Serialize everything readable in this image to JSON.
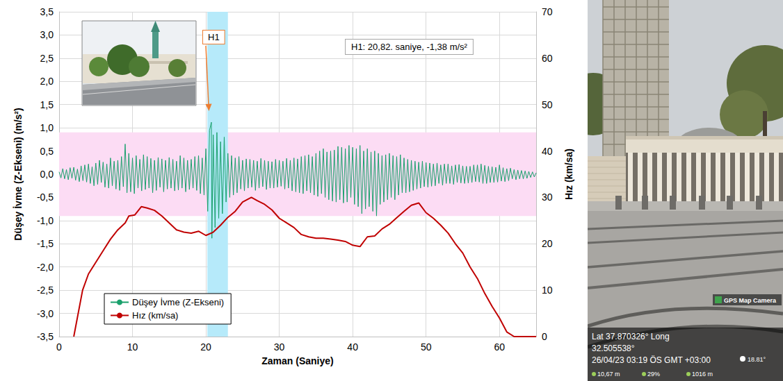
{
  "chart_data": {
    "type": "line",
    "x_label": "Zaman (Saniye)",
    "y_label": "Düşey İvme (Z-Ekseni) (m/s²)",
    "y2_label": "Hız (km/sa)",
    "xlim": [
      0,
      65
    ],
    "xticks": [
      0,
      10,
      20,
      30,
      40,
      50,
      60
    ],
    "ylim": [
      -3.5,
      3.5
    ],
    "yticks": [
      {
        "value": -3.5,
        "label": "-3,5"
      },
      {
        "value": -3,
        "label": "-3,0"
      },
      {
        "value": -2.5,
        "label": "-2,5"
      },
      {
        "value": -2,
        "label": "-2,0"
      },
      {
        "value": -1.5,
        "label": "-1,5"
      },
      {
        "value": -1,
        "label": "-1,0"
      },
      {
        "value": -0.5,
        "label": "-0,5"
      },
      {
        "value": 0,
        "label": "0,0"
      },
      {
        "value": 0.5,
        "label": "0,5"
      },
      {
        "value": 1,
        "label": "1,0"
      },
      {
        "value": 1.5,
        "label": "1,5"
      },
      {
        "value": 2,
        "label": "2,0"
      },
      {
        "value": 2.5,
        "label": "2,5"
      },
      {
        "value": 3,
        "label": "3,0"
      },
      {
        "value": 3.5,
        "label": "3,5"
      }
    ],
    "y2lim": [
      0,
      70
    ],
    "y2ticks": [
      0,
      10,
      20,
      30,
      40,
      50,
      60,
      70
    ],
    "grid": true,
    "legend": "lower left",
    "y_band": [
      -0.9,
      0.9
    ],
    "x_band": [
      20.2,
      23
    ],
    "annotations": [
      "H1",
      "H1: 20,82. saniye, -1,38 m/s²"
    ],
    "series": [
      {
        "name": "Düşey İvme (Z-Ekseni)",
        "color": "#1aa06c",
        "x": [
          0,
          0.25,
          0.5,
          0.75,
          1,
          1.25,
          1.5,
          1.75,
          2,
          2.25,
          2.5,
          2.75,
          3,
          3.25,
          3.5,
          3.75,
          4,
          4.25,
          4.5,
          4.75,
          5,
          5.25,
          5.5,
          5.75,
          6,
          6.25,
          6.5,
          6.75,
          7,
          7.25,
          7.5,
          7.75,
          8,
          8.25,
          8.5,
          8.75,
          9,
          9.25,
          9.5,
          9.75,
          10,
          10.25,
          10.5,
          10.75,
          11,
          11.25,
          11.5,
          11.75,
          12,
          12.25,
          12.5,
          12.75,
          13,
          13.25,
          13.5,
          13.75,
          14,
          14.25,
          14.5,
          14.75,
          15,
          15.25,
          15.5,
          15.75,
          16,
          16.25,
          16.5,
          16.75,
          17,
          17.25,
          17.5,
          17.75,
          18,
          18.25,
          18.5,
          18.75,
          19,
          19.25,
          19.5,
          19.75,
          20,
          20.25,
          20.5,
          20.75,
          20.82,
          21,
          21.25,
          21.5,
          21.75,
          22,
          22.25,
          22.5,
          22.75,
          23,
          23.25,
          23.5,
          23.75,
          24,
          24.25,
          24.5,
          24.75,
          25,
          25.25,
          25.5,
          25.75,
          26,
          26.25,
          26.5,
          26.75,
          27,
          27.25,
          27.5,
          27.75,
          28,
          28.25,
          28.5,
          28.75,
          29,
          29.25,
          29.5,
          29.75,
          30,
          30.25,
          30.5,
          30.75,
          31,
          31.25,
          31.5,
          31.75,
          32,
          32.25,
          32.5,
          32.75,
          33,
          33.25,
          33.5,
          33.75,
          34,
          34.25,
          34.5,
          34.75,
          35,
          35.25,
          35.5,
          35.75,
          36,
          36.25,
          36.5,
          36.75,
          37,
          37.25,
          37.5,
          37.75,
          38,
          38.25,
          38.5,
          38.75,
          39,
          39.25,
          39.5,
          39.75,
          40,
          40.25,
          40.5,
          40.75,
          41,
          41.25,
          41.5,
          41.75,
          42,
          42.25,
          42.5,
          42.75,
          43,
          43.25,
          43.5,
          43.75,
          44,
          44.25,
          44.5,
          44.75,
          45,
          45.25,
          45.5,
          45.75,
          46,
          46.25,
          46.5,
          46.75,
          47,
          47.25,
          47.5,
          47.75,
          48,
          48.25,
          48.5,
          48.75,
          49,
          49.25,
          49.5,
          49.75,
          50,
          50.25,
          50.5,
          50.75,
          51,
          51.25,
          51.5,
          51.75,
          52,
          52.25,
          52.5,
          52.75,
          53,
          53.25,
          53.5,
          53.75,
          54,
          54.25,
          54.5,
          54.75,
          55,
          55.25,
          55.5,
          55.75,
          56,
          56.25,
          56.5,
          56.75,
          57,
          57.25,
          57.5,
          57.75,
          58,
          58.25,
          58.5,
          58.75,
          59,
          59.25,
          59.5,
          59.75,
          60,
          60.25,
          60.5,
          60.75,
          61,
          61.25,
          61.5,
          61.75,
          62,
          62.25,
          62.5,
          62.75,
          63,
          63.25,
          63.5,
          63.75,
          64,
          64.25,
          64.5,
          64.75,
          65
        ],
        "values": [
          0.05,
          -0.08,
          0.12,
          -0.1,
          0.1,
          -0.12,
          0.14,
          -0.09,
          0.15,
          -0.13,
          0.11,
          -0.16,
          0.18,
          -0.14,
          0.2,
          -0.17,
          0.22,
          -0.2,
          0.16,
          -0.25,
          0.24,
          -0.22,
          0.3,
          -0.18,
          0.26,
          -0.28,
          0.22,
          -0.3,
          0.35,
          -0.25,
          0.28,
          -0.32,
          0.3,
          -0.35,
          0.38,
          -0.27,
          0.65,
          -0.4,
          0.45,
          -0.38,
          0.35,
          -0.42,
          0.4,
          -0.3,
          0.32,
          -0.36,
          0.42,
          -0.33,
          0.38,
          -0.3,
          0.34,
          -0.4,
          0.3,
          -0.35,
          0.36,
          -0.28,
          0.33,
          -0.38,
          0.3,
          -0.32,
          0.36,
          -0.3,
          0.32,
          -0.36,
          0.28,
          -0.34,
          0.4,
          -0.3,
          0.35,
          -0.38,
          0.3,
          -0.33,
          0.32,
          -0.3,
          0.38,
          -0.35,
          0.4,
          -0.42,
          0.35,
          -0.45,
          0.55,
          -0.8,
          0.95,
          1.12,
          -1.38,
          0.85,
          -1.15,
          0.9,
          -0.95,
          0.7,
          -0.85,
          0.8,
          -0.6,
          0.45,
          -0.5,
          0.4,
          -0.45,
          0.35,
          -0.4,
          0.38,
          -0.32,
          0.3,
          -0.36,
          0.33,
          -0.3,
          0.32,
          -0.28,
          0.3,
          -0.35,
          0.28,
          -0.3,
          0.34,
          -0.27,
          0.3,
          -0.33,
          0.28,
          -0.3,
          0.27,
          -0.3,
          0.32,
          -0.28,
          0.3,
          -0.26,
          0.28,
          -0.32,
          0.34,
          -0.3,
          0.3,
          -0.36,
          0.35,
          -0.38,
          0.33,
          -0.4,
          0.38,
          -0.42,
          0.4,
          -0.36,
          0.42,
          -0.4,
          0.38,
          -0.45,
          0.45,
          -0.48,
          0.5,
          -0.42,
          0.55,
          -0.5,
          0.48,
          -0.55,
          0.5,
          -0.58,
          0.52,
          -0.6,
          0.6,
          -0.55,
          0.58,
          -0.62,
          0.55,
          -0.6,
          0.62,
          -0.5,
          0.58,
          -0.65,
          0.55,
          -0.7,
          0.62,
          -0.85,
          0.5,
          -0.75,
          0.55,
          -0.7,
          0.48,
          -0.8,
          0.5,
          -0.9,
          0.45,
          -0.65,
          0.4,
          -0.6,
          0.42,
          -0.55,
          0.45,
          -0.5,
          0.4,
          -0.55,
          0.38,
          -0.45,
          0.42,
          -0.4,
          0.35,
          -0.4,
          0.32,
          -0.38,
          0.3,
          -0.35,
          0.28,
          -0.32,
          0.26,
          -0.3,
          0.28,
          -0.27,
          0.25,
          -0.28,
          0.24,
          -0.26,
          0.22,
          -0.25,
          0.24,
          -0.2,
          0.2,
          -0.24,
          0.22,
          -0.2,
          0.22,
          -0.2,
          0.18,
          -0.22,
          0.2,
          -0.18,
          0.21,
          -0.19,
          0.18,
          -0.2,
          0.17,
          -0.19,
          0.17,
          -0.18,
          0.2,
          -0.16,
          0.2,
          -0.17,
          0.22,
          -0.2,
          0.19,
          -0.2,
          0.17,
          -0.18,
          0.16,
          -0.18,
          0.15,
          -0.17,
          0.2,
          -0.15,
          0.14,
          -0.16,
          0.12,
          -0.14,
          0.13,
          -0.1,
          0.1,
          -0.12,
          0.09,
          -0.1,
          0.08,
          -0.1,
          0.07,
          -0.09,
          0.06,
          -0.07,
          0.05,
          -0.06,
          0.03
        ]
      },
      {
        "name": "Hız (km/sa)",
        "color": "#c00000",
        "axis": "y2",
        "x": [
          2,
          3.2,
          4,
          5,
          6,
          7,
          8,
          9,
          9.5,
          10.3,
          11.2,
          12,
          13,
          14,
          15,
          16,
          17,
          18,
          19,
          20,
          21,
          22,
          23,
          24,
          25,
          26.2,
          27,
          28,
          29,
          30,
          31,
          32,
          33,
          34,
          35,
          36,
          37,
          38,
          39,
          40,
          41,
          42,
          43,
          44,
          45,
          46,
          47,
          48,
          49,
          50,
          51,
          52,
          53,
          54,
          55,
          56,
          57,
          58,
          59,
          60,
          61,
          62,
          63,
          64,
          65
        ],
        "values": [
          0,
          10,
          13.5,
          16,
          18.5,
          21,
          23,
          24.5,
          26,
          26.2,
          28,
          27.7,
          27.2,
          26,
          24.5,
          23,
          22.5,
          22.3,
          22.7,
          21.8,
          22.5,
          24,
          25.7,
          27,
          29,
          30,
          29.3,
          28.5,
          27.3,
          25.5,
          24.5,
          23.5,
          22,
          21.5,
          21.2,
          21.2,
          21,
          20.8,
          20.5,
          19.7,
          19.4,
          21.5,
          21.7,
          23.2,
          24.2,
          25.6,
          27,
          28.3,
          28.8,
          26.7,
          25.5,
          24,
          22.3,
          20,
          18,
          15,
          12.5,
          9.3,
          6.5,
          4,
          1,
          0,
          0,
          0,
          0
        ]
      }
    ]
  },
  "photo": {
    "watermark": "GPS Map Camera",
    "lines": [
      "Lat 37.870326° Long",
      "32.505538°",
      "26/04/23 03:19 ÖS GMT +03:00"
    ],
    "temperature": "18.81°",
    "stats": [
      "10,67 m",
      "29%",
      "1016 m"
    ]
  }
}
